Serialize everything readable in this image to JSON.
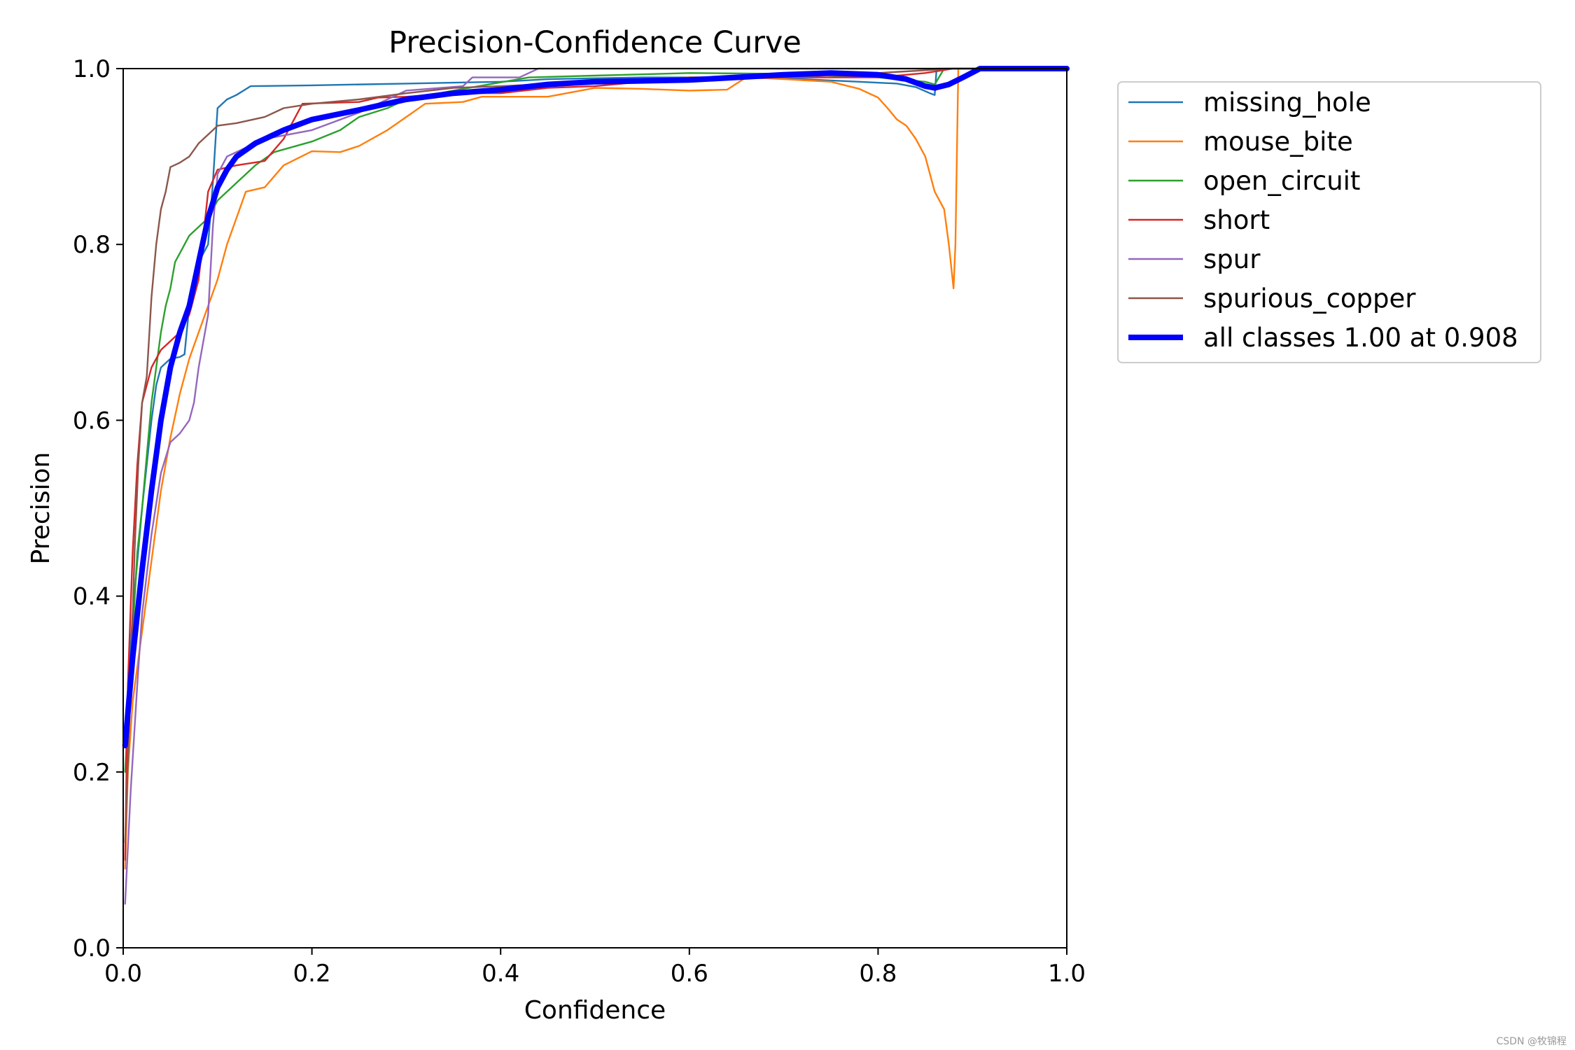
{
  "chart_data": {
    "type": "line",
    "title": "Precision-Confidence Curve",
    "xlabel": "Confidence",
    "ylabel": "Precision",
    "xlim": [
      0,
      1
    ],
    "ylim": [
      0,
      1
    ],
    "xticks": [
      "0.0",
      "0.2",
      "0.4",
      "0.6",
      "0.8",
      "1.0"
    ],
    "yticks": [
      "0.0",
      "0.2",
      "0.4",
      "0.6",
      "0.8",
      "1.0"
    ],
    "grid": false,
    "legend_position": "outside-top-right",
    "series": [
      {
        "name": "missing_hole",
        "color": "#1f77b4",
        "points": [
          [
            0.002,
            0.23
          ],
          [
            0.01,
            0.38
          ],
          [
            0.02,
            0.5
          ],
          [
            0.03,
            0.6
          ],
          [
            0.035,
            0.64
          ],
          [
            0.04,
            0.66
          ],
          [
            0.05,
            0.67
          ],
          [
            0.06,
            0.672
          ],
          [
            0.065,
            0.675
          ],
          [
            0.07,
            0.73
          ],
          [
            0.075,
            0.76
          ],
          [
            0.08,
            0.78
          ],
          [
            0.09,
            0.8
          ],
          [
            0.095,
            0.87
          ],
          [
            0.1,
            0.955
          ],
          [
            0.11,
            0.965
          ],
          [
            0.12,
            0.97
          ],
          [
            0.135,
            0.98
          ],
          [
            0.2,
            0.981
          ],
          [
            0.3,
            0.983
          ],
          [
            0.4,
            0.985
          ],
          [
            0.45,
            0.988
          ],
          [
            0.55,
            0.99
          ],
          [
            0.65,
            0.99
          ],
          [
            0.72,
            0.988
          ],
          [
            0.78,
            0.985
          ],
          [
            0.82,
            0.983
          ],
          [
            0.84,
            0.979
          ],
          [
            0.855,
            0.972
          ],
          [
            0.86,
            0.97
          ],
          [
            0.862,
            1.0
          ],
          [
            1.0,
            1.0
          ]
        ]
      },
      {
        "name": "mouse_bite",
        "color": "#ff7f0e",
        "points": [
          [
            0.002,
            0.09
          ],
          [
            0.005,
            0.2
          ],
          [
            0.01,
            0.28
          ],
          [
            0.02,
            0.36
          ],
          [
            0.03,
            0.44
          ],
          [
            0.04,
            0.52
          ],
          [
            0.05,
            0.58
          ],
          [
            0.06,
            0.63
          ],
          [
            0.07,
            0.67
          ],
          [
            0.08,
            0.7
          ],
          [
            0.09,
            0.73
          ],
          [
            0.1,
            0.76
          ],
          [
            0.11,
            0.8
          ],
          [
            0.12,
            0.83
          ],
          [
            0.13,
            0.86
          ],
          [
            0.15,
            0.865
          ],
          [
            0.17,
            0.89
          ],
          [
            0.2,
            0.906
          ],
          [
            0.23,
            0.905
          ],
          [
            0.25,
            0.912
          ],
          [
            0.28,
            0.93
          ],
          [
            0.3,
            0.945
          ],
          [
            0.32,
            0.96
          ],
          [
            0.36,
            0.962
          ],
          [
            0.38,
            0.968
          ],
          [
            0.45,
            0.968
          ],
          [
            0.5,
            0.978
          ],
          [
            0.55,
            0.977
          ],
          [
            0.6,
            0.975
          ],
          [
            0.64,
            0.976
          ],
          [
            0.66,
            0.99
          ],
          [
            0.7,
            0.988
          ],
          [
            0.75,
            0.985
          ],
          [
            0.78,
            0.977
          ],
          [
            0.8,
            0.967
          ],
          [
            0.81,
            0.955
          ],
          [
            0.82,
            0.942
          ],
          [
            0.83,
            0.935
          ],
          [
            0.84,
            0.92
          ],
          [
            0.85,
            0.9
          ],
          [
            0.86,
            0.86
          ],
          [
            0.87,
            0.84
          ],
          [
            0.875,
            0.8
          ],
          [
            0.88,
            0.75
          ],
          [
            0.882,
            0.8
          ],
          [
            0.885,
            1.0
          ],
          [
            1.0,
            1.0
          ]
        ]
      },
      {
        "name": "open_circuit",
        "color": "#2ca02c",
        "points": [
          [
            0.002,
            0.2
          ],
          [
            0.008,
            0.32
          ],
          [
            0.015,
            0.45
          ],
          [
            0.02,
            0.5
          ],
          [
            0.03,
            0.62
          ],
          [
            0.04,
            0.7
          ],
          [
            0.045,
            0.73
          ],
          [
            0.05,
            0.75
          ],
          [
            0.055,
            0.78
          ],
          [
            0.06,
            0.79
          ],
          [
            0.07,
            0.81
          ],
          [
            0.08,
            0.82
          ],
          [
            0.09,
            0.83
          ],
          [
            0.1,
            0.85
          ],
          [
            0.12,
            0.87
          ],
          [
            0.14,
            0.89
          ],
          [
            0.16,
            0.905
          ],
          [
            0.2,
            0.917
          ],
          [
            0.23,
            0.93
          ],
          [
            0.25,
            0.945
          ],
          [
            0.28,
            0.955
          ],
          [
            0.3,
            0.965
          ],
          [
            0.35,
            0.975
          ],
          [
            0.43,
            0.99
          ],
          [
            0.5,
            0.992
          ],
          [
            0.6,
            0.995
          ],
          [
            0.7,
            0.994
          ],
          [
            0.8,
            0.99
          ],
          [
            0.85,
            0.985
          ],
          [
            0.86,
            0.982
          ],
          [
            0.87,
            1.0
          ],
          [
            1.0,
            1.0
          ]
        ]
      },
      {
        "name": "short",
        "color": "#d62728",
        "points": [
          [
            0.002,
            0.1
          ],
          [
            0.005,
            0.3
          ],
          [
            0.01,
            0.45
          ],
          [
            0.015,
            0.55
          ],
          [
            0.02,
            0.62
          ],
          [
            0.03,
            0.66
          ],
          [
            0.04,
            0.68
          ],
          [
            0.05,
            0.69
          ],
          [
            0.06,
            0.7
          ],
          [
            0.07,
            0.72
          ],
          [
            0.08,
            0.76
          ],
          [
            0.09,
            0.86
          ],
          [
            0.1,
            0.885
          ],
          [
            0.12,
            0.89
          ],
          [
            0.15,
            0.895
          ],
          [
            0.17,
            0.92
          ],
          [
            0.19,
            0.96
          ],
          [
            0.25,
            0.962
          ],
          [
            0.27,
            0.967
          ],
          [
            0.3,
            0.968
          ],
          [
            0.35,
            0.972
          ],
          [
            0.4,
            0.972
          ],
          [
            0.45,
            0.978
          ],
          [
            0.5,
            0.98
          ],
          [
            0.55,
            0.985
          ],
          [
            0.6,
            0.99
          ],
          [
            0.7,
            0.99
          ],
          [
            0.8,
            0.99
          ],
          [
            0.85,
            0.995
          ],
          [
            0.88,
            1.0
          ],
          [
            1.0,
            1.0
          ]
        ]
      },
      {
        "name": "spur",
        "color": "#9467bd",
        "points": [
          [
            0.002,
            0.05
          ],
          [
            0.008,
            0.18
          ],
          [
            0.015,
            0.3
          ],
          [
            0.02,
            0.38
          ],
          [
            0.03,
            0.47
          ],
          [
            0.04,
            0.54
          ],
          [
            0.05,
            0.575
          ],
          [
            0.06,
            0.585
          ],
          [
            0.07,
            0.6
          ],
          [
            0.075,
            0.62
          ],
          [
            0.08,
            0.66
          ],
          [
            0.09,
            0.72
          ],
          [
            0.095,
            0.82
          ],
          [
            0.1,
            0.88
          ],
          [
            0.11,
            0.9
          ],
          [
            0.13,
            0.91
          ],
          [
            0.15,
            0.92
          ],
          [
            0.2,
            0.93
          ],
          [
            0.25,
            0.95
          ],
          [
            0.3,
            0.975
          ],
          [
            0.36,
            0.98
          ],
          [
            0.37,
            0.99
          ],
          [
            0.42,
            0.99
          ],
          [
            0.44,
            1.0
          ],
          [
            1.0,
            1.0
          ]
        ]
      },
      {
        "name": "spurious_copper",
        "color": "#8c564b",
        "points": [
          [
            0.002,
            0.12
          ],
          [
            0.008,
            0.3
          ],
          [
            0.012,
            0.45
          ],
          [
            0.016,
            0.55
          ],
          [
            0.02,
            0.62
          ],
          [
            0.025,
            0.65
          ],
          [
            0.03,
            0.74
          ],
          [
            0.035,
            0.8
          ],
          [
            0.04,
            0.84
          ],
          [
            0.045,
            0.86
          ],
          [
            0.05,
            0.888
          ],
          [
            0.06,
            0.893
          ],
          [
            0.07,
            0.9
          ],
          [
            0.08,
            0.915
          ],
          [
            0.09,
            0.925
          ],
          [
            0.1,
            0.935
          ],
          [
            0.12,
            0.938
          ],
          [
            0.15,
            0.945
          ],
          [
            0.17,
            0.955
          ],
          [
            0.2,
            0.96
          ],
          [
            0.25,
            0.965
          ],
          [
            0.3,
            0.972
          ],
          [
            0.35,
            0.978
          ],
          [
            0.4,
            0.98
          ],
          [
            0.5,
            0.985
          ],
          [
            0.6,
            0.99
          ],
          [
            0.7,
            0.99
          ],
          [
            0.8,
            0.995
          ],
          [
            0.88,
            1.0
          ],
          [
            1.0,
            1.0
          ]
        ]
      },
      {
        "name": "all classes 1.00 at 0.908",
        "color": "#0000ff",
        "bold": true,
        "points": [
          [
            0.002,
            0.23
          ],
          [
            0.01,
            0.33
          ],
          [
            0.02,
            0.43
          ],
          [
            0.03,
            0.52
          ],
          [
            0.04,
            0.6
          ],
          [
            0.05,
            0.66
          ],
          [
            0.06,
            0.7
          ],
          [
            0.07,
            0.73
          ],
          [
            0.08,
            0.78
          ],
          [
            0.09,
            0.83
          ],
          [
            0.1,
            0.865
          ],
          [
            0.11,
            0.885
          ],
          [
            0.12,
            0.9
          ],
          [
            0.14,
            0.915
          ],
          [
            0.17,
            0.93
          ],
          [
            0.2,
            0.942
          ],
          [
            0.25,
            0.953
          ],
          [
            0.3,
            0.965
          ],
          [
            0.35,
            0.972
          ],
          [
            0.4,
            0.976
          ],
          [
            0.45,
            0.982
          ],
          [
            0.5,
            0.985
          ],
          [
            0.6,
            0.987
          ],
          [
            0.7,
            0.993
          ],
          [
            0.75,
            0.995
          ],
          [
            0.8,
            0.993
          ],
          [
            0.83,
            0.988
          ],
          [
            0.85,
            0.98
          ],
          [
            0.86,
            0.978
          ],
          [
            0.875,
            0.982
          ],
          [
            0.89,
            0.99
          ],
          [
            0.908,
            1.0
          ],
          [
            1.0,
            1.0
          ]
        ]
      }
    ]
  },
  "watermark": "CSDN @牧锦程"
}
